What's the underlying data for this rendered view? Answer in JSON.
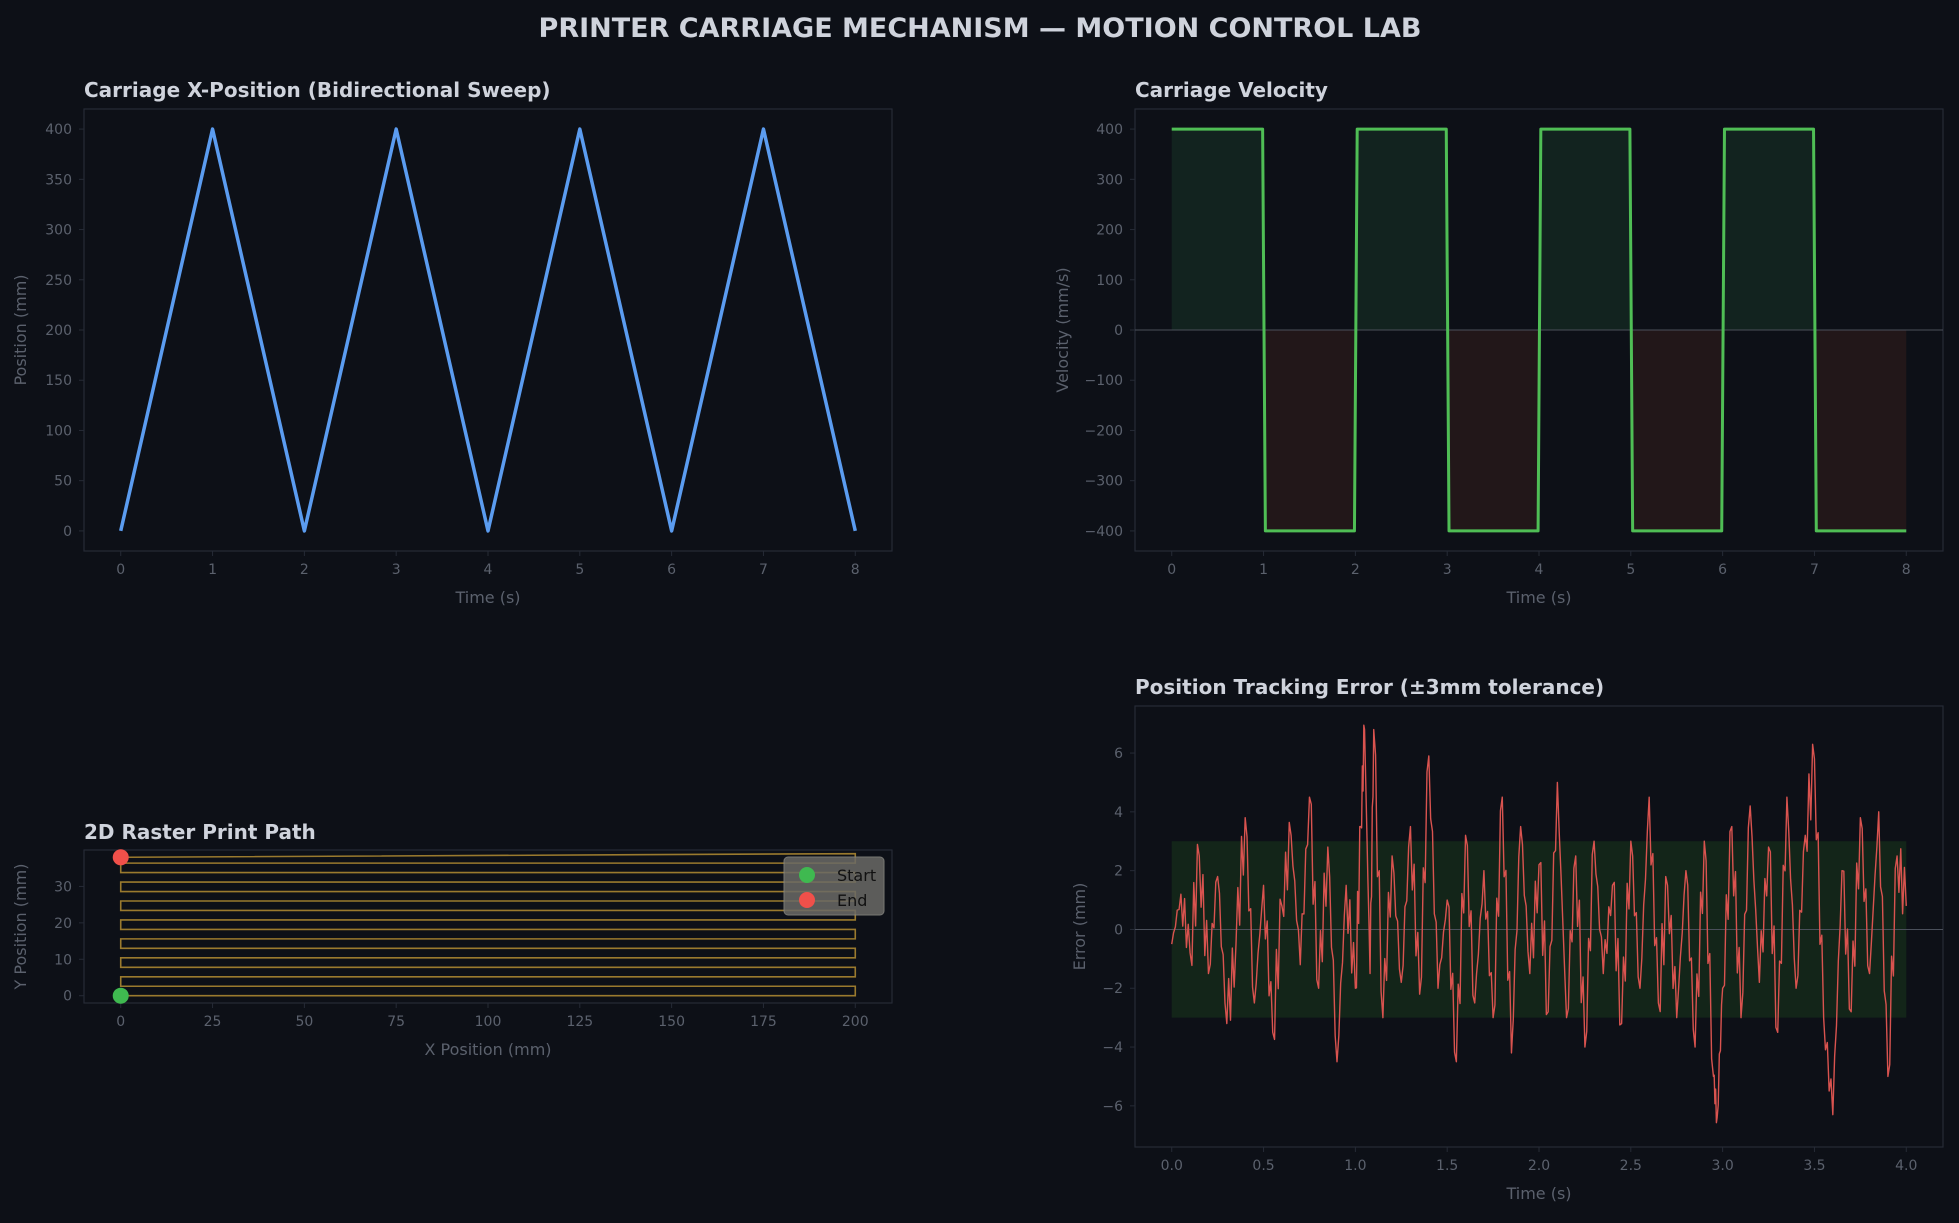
{
  "suptitle": "PRINTER CARRIAGE MECHANISM — MOTION CONTROL LAB",
  "theme": {
    "background": "#0d1017",
    "plot_background": "#0d1017",
    "spine": "#262b36",
    "tick_label": "#5b616d",
    "title": "#cfd3dc",
    "zero_line": "#4a4f5a"
  },
  "chart_data": [
    {
      "id": "position",
      "type": "line",
      "title": "Carriage X-Position (Bidirectional Sweep)",
      "xlabel": "Time (s)",
      "ylabel": "Position (mm)",
      "xlim": [
        -0.4,
        8.4
      ],
      "ylim": [
        -20,
        420
      ],
      "xticks": [
        0,
        1,
        2,
        3,
        4,
        5,
        6,
        7,
        8
      ],
      "xtick_labels": [
        "0",
        "1",
        "2",
        "3",
        "4",
        "5",
        "6",
        "7",
        "8"
      ],
      "yticks": [
        0,
        50,
        100,
        150,
        200,
        250,
        300,
        350,
        400
      ],
      "ytick_labels": [
        "0",
        "50",
        "100",
        "150",
        "200",
        "250",
        "300",
        "350",
        "400"
      ],
      "series": [
        {
          "color": "#5b9cf0",
          "x": [
            0,
            1,
            2,
            3,
            4,
            5,
            6,
            7,
            8
          ],
          "y": [
            0,
            400,
            0,
            400,
            0,
            400,
            0,
            400,
            0
          ]
        }
      ]
    },
    {
      "id": "velocity",
      "type": "line",
      "title": "Carriage Velocity",
      "xlabel": "Time (s)",
      "ylabel": "Velocity (mm/s)",
      "xlim": [
        -0.4,
        8.4
      ],
      "ylim": [
        -440,
        440
      ],
      "xticks": [
        0,
        1,
        2,
        3,
        4,
        5,
        6,
        7,
        8
      ],
      "xtick_labels": [
        "0",
        "1",
        "2",
        "3",
        "4",
        "5",
        "6",
        "7",
        "8"
      ],
      "yticks": [
        -400,
        -300,
        -200,
        -100,
        0,
        100,
        200,
        300,
        400
      ],
      "ytick_labels": [
        "−400",
        "−300",
        "−200",
        "−100",
        "0",
        "100",
        "200",
        "300",
        "400"
      ],
      "positive_fill": "#12231f",
      "negative_fill": "#221719",
      "series": [
        {
          "color": "#4fbe55",
          "x": [
            0,
            0.99,
            1.02,
            1.99,
            2.02,
            2.99,
            3.02,
            3.99,
            4.02,
            4.99,
            5.02,
            5.99,
            6.02,
            6.99,
            7.02,
            8
          ],
          "y": [
            400,
            400,
            -400,
            -400,
            400,
            400,
            -400,
            -400,
            400,
            400,
            -400,
            -400,
            400,
            400,
            -400,
            -400
          ]
        }
      ]
    },
    {
      "id": "raster",
      "type": "line",
      "title": "2D Raster Print Path",
      "xlabel": "X Position (mm)",
      "ylabel": "Y Position (mm)",
      "xlim": [
        -10,
        210
      ],
      "ylim": [
        -2,
        40
      ],
      "xticks": [
        0,
        25,
        50,
        75,
        100,
        125,
        150,
        175,
        200
      ],
      "xtick_labels": [
        "0",
        "25",
        "50",
        "75",
        "100",
        "125",
        "150",
        "175",
        "200"
      ],
      "yticks": [
        0,
        10,
        20,
        30
      ],
      "ytick_labels": [
        "0",
        "10",
        "20",
        "30"
      ],
      "path_color": "#9a7a2e",
      "path": {
        "x_min": 0,
        "x_max": 200,
        "line_step_mm": 2.6,
        "passes": 15
      },
      "start_point": {
        "x": 0,
        "y": 0,
        "color": "#3fb950"
      },
      "end_point": {
        "x": 0,
        "y": 38,
        "color": "#f0504a"
      },
      "legend": {
        "position": "upper right",
        "entries": [
          {
            "label": "Start",
            "color": "#3fb950"
          },
          {
            "label": "End",
            "color": "#f0504a"
          }
        ]
      }
    },
    {
      "id": "error",
      "type": "line",
      "title": "Position Tracking Error (±3mm tolerance)",
      "xlabel": "Time (s)",
      "ylabel": "Error (mm)",
      "xlim": [
        -0.2,
        4.2
      ],
      "ylim": [
        -7.4,
        7.6
      ],
      "xticks": [
        0.0,
        0.5,
        1.0,
        1.5,
        2.0,
        2.5,
        3.0,
        3.5,
        4.0
      ],
      "xtick_labels": [
        "0.0",
        "0.5",
        "1.0",
        "1.5",
        "2.0",
        "2.5",
        "3.0",
        "3.5",
        "4.0"
      ],
      "yticks": [
        -6,
        -4,
        -2,
        0,
        2,
        4,
        6
      ],
      "ytick_labels": [
        "−6",
        "−4",
        "−2",
        "0",
        "2",
        "4",
        "6"
      ],
      "tolerance": 3,
      "tolerance_fill": "#132519",
      "series": [
        {
          "color": "#d9534f",
          "x": [
            0,
            0.05,
            0.1,
            0.15,
            0.2,
            0.25,
            0.3,
            0.35,
            0.4,
            0.45,
            0.5,
            0.55,
            0.6,
            0.65,
            0.7,
            0.75,
            0.8,
            0.85,
            0.9,
            0.95,
            1.0,
            1.03,
            1.05,
            1.08,
            1.1,
            1.15,
            1.2,
            1.25,
            1.3,
            1.35,
            1.4,
            1.45,
            1.5,
            1.55,
            1.6,
            1.65,
            1.7,
            1.75,
            1.8,
            1.85,
            1.9,
            1.95,
            2.0,
            2.05,
            2.1,
            2.15,
            2.2,
            2.25,
            2.3,
            2.35,
            2.4,
            2.45,
            2.5,
            2.55,
            2.6,
            2.65,
            2.7,
            2.75,
            2.8,
            2.85,
            2.9,
            2.95,
            2.97,
            3.0,
            3.05,
            3.1,
            3.15,
            3.2,
            3.25,
            3.3,
            3.35,
            3.4,
            3.45,
            3.5,
            3.55,
            3.6,
            3.65,
            3.7,
            3.75,
            3.8,
            3.85,
            3.9,
            3.95,
            4.0
          ],
          "y": [
            -0.5,
            1.2,
            -0.8,
            2.5,
            -1.5,
            1.8,
            -3.2,
            -0.5,
            3.8,
            -2.5,
            1.5,
            -3.5,
            0.8,
            3.2,
            -1.2,
            4.5,
            -2.0,
            2.8,
            -4.5,
            1.5,
            -2.0,
            3.5,
            6.8,
            -1.5,
            6.8,
            -3.0,
            2.5,
            -1.8,
            3.5,
            -2.2,
            5.9,
            -2.0,
            1.0,
            -4.5,
            3.2,
            -2.5,
            2.0,
            -3.0,
            4.5,
            -4.2,
            3.5,
            -1.5,
            2.2,
            -2.8,
            5.0,
            -3.0,
            2.5,
            -4.0,
            3.0,
            -1.5,
            1.5,
            -3.2,
            3.0,
            -2.0,
            4.5,
            -2.5,
            1.5,
            -3.0,
            2.0,
            -4.0,
            3.0,
            -5.0,
            -6.4,
            -2.0,
            3.5,
            -3.0,
            4.2,
            -1.8,
            2.8,
            -3.5,
            4.5,
            -2.0,
            3.2,
            5.8,
            -3.0,
            -6.3,
            2.0,
            -2.8,
            3.8,
            -1.5,
            4.0,
            -5.0,
            2.5,
            0.8
          ]
        }
      ]
    }
  ]
}
